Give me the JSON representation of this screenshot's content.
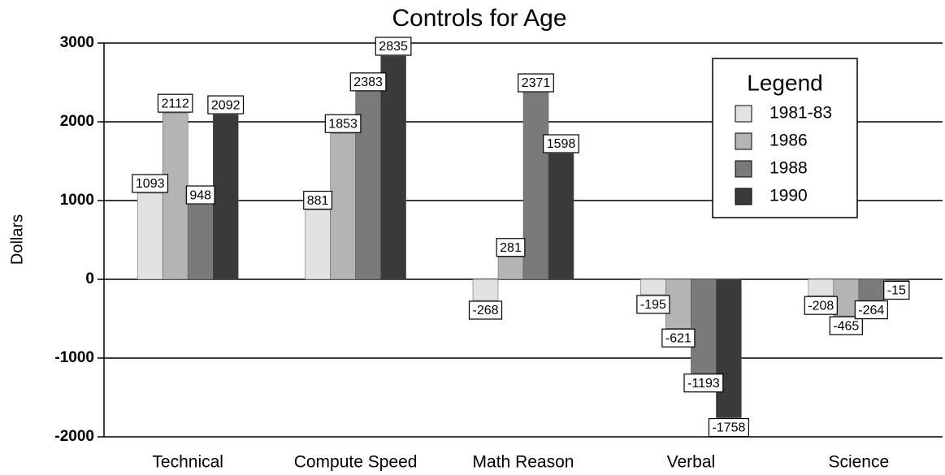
{
  "chart_data": {
    "type": "bar",
    "title": "Controls for Age",
    "y_label": "Dollars",
    "categories": [
      "Technical",
      "Compute Speed",
      "Math Reason",
      "Verbal",
      "Science"
    ],
    "series": [
      {
        "name": "1981-83",
        "color": "#e2e2e2",
        "values": [
          1093,
          881,
          -268,
          -195,
          -208
        ]
      },
      {
        "name": "1986",
        "color": "#b4b4b4",
        "values": [
          2112,
          1853,
          281,
          -621,
          -465
        ]
      },
      {
        "name": "1988",
        "color": "#7a7a7a",
        "values": [
          948,
          2383,
          2371,
          -1193,
          -264
        ]
      },
      {
        "name": "1990",
        "color": "#3a3a3a",
        "values": [
          2092,
          2835,
          1598,
          -1758,
          -15
        ]
      }
    ],
    "ylim": [
      -2000,
      3000
    ],
    "yticks": [
      -2000,
      -1000,
      0,
      1000,
      2000,
      3000
    ],
    "grid": true,
    "legend_title": "Legend",
    "legend": "upper right"
  }
}
